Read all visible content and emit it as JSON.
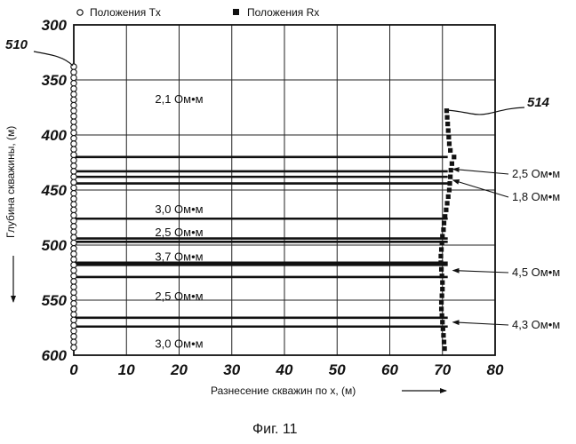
{
  "chart_data": {
    "type": "scatter",
    "title": "",
    "caption": "Фиг. 11",
    "xlabel": "Разнесение скважин по x, (м)",
    "ylabel": "Глубина скважины, (м)",
    "xlim": [
      0,
      80
    ],
    "ylim": [
      300,
      600
    ],
    "y_inverted": true,
    "x_ticks": [
      "0",
      "10",
      "20",
      "30",
      "40",
      "50",
      "60",
      "70",
      "80"
    ],
    "y_ticks": [
      "300",
      "350",
      "400",
      "450",
      "500",
      "550",
      "600"
    ],
    "x_tick_values": [
      0,
      10,
      20,
      30,
      40,
      50,
      60,
      70,
      80
    ],
    "y_tick_values": [
      300,
      350,
      400,
      450,
      500,
      550,
      600
    ],
    "grid": true,
    "legend": {
      "position": "top",
      "entries": [
        "Положения Tx",
        "Положения Rx"
      ]
    },
    "series": [
      {
        "name": "Положения Tx",
        "marker": "circle",
        "points": [
          [
            0,
            338
          ],
          [
            0,
            343
          ],
          [
            0,
            348
          ],
          [
            0,
            353
          ],
          [
            0,
            358
          ],
          [
            0,
            363
          ],
          [
            0,
            368
          ],
          [
            0,
            373
          ],
          [
            0,
            378
          ],
          [
            0,
            383
          ],
          [
            0,
            388
          ],
          [
            0,
            393
          ],
          [
            0,
            398
          ],
          [
            0,
            403
          ],
          [
            0,
            408
          ],
          [
            0,
            413
          ],
          [
            0,
            418
          ],
          [
            0,
            423
          ],
          [
            0,
            428
          ],
          [
            0,
            433
          ],
          [
            0,
            438
          ],
          [
            0,
            443
          ],
          [
            0,
            448
          ],
          [
            0,
            453
          ],
          [
            0,
            458
          ],
          [
            0,
            463
          ],
          [
            0,
            468
          ],
          [
            0,
            473
          ],
          [
            0,
            478
          ],
          [
            0,
            483
          ],
          [
            0,
            488
          ],
          [
            0,
            493
          ],
          [
            0,
            498
          ],
          [
            0,
            503
          ],
          [
            0,
            508
          ],
          [
            0,
            513
          ],
          [
            0,
            518
          ],
          [
            0,
            523
          ],
          [
            0,
            528
          ],
          [
            0,
            533
          ],
          [
            0,
            538
          ],
          [
            0,
            543
          ],
          [
            0,
            548
          ],
          [
            0,
            553
          ],
          [
            0,
            558
          ],
          [
            0,
            563
          ],
          [
            0,
            568
          ],
          [
            0,
            573
          ],
          [
            0,
            578
          ],
          [
            0,
            583
          ],
          [
            0,
            588
          ],
          [
            0,
            593
          ]
        ]
      },
      {
        "name": "Положения Rx",
        "marker": "square",
        "points": [
          [
            70.8,
            378
          ],
          [
            70.9,
            384
          ],
          [
            71.0,
            390
          ],
          [
            71.1,
            396
          ],
          [
            71.2,
            402
          ],
          [
            71.3,
            408
          ],
          [
            71.5,
            414
          ],
          [
            72.2,
            420
          ],
          [
            71.8,
            426
          ],
          [
            71.6,
            432
          ],
          [
            71.5,
            438
          ],
          [
            71.4,
            444
          ],
          [
            71.3,
            450
          ],
          [
            71.1,
            456
          ],
          [
            70.9,
            462
          ],
          [
            70.7,
            468
          ],
          [
            70.5,
            474
          ],
          [
            70.3,
            480
          ],
          [
            70.2,
            486
          ],
          [
            70.0,
            492
          ],
          [
            69.9,
            498
          ],
          [
            69.8,
            504
          ],
          [
            69.7,
            510
          ],
          [
            69.7,
            516
          ],
          [
            69.8,
            522
          ],
          [
            69.9,
            528
          ],
          [
            70.0,
            534
          ],
          [
            70.0,
            540
          ],
          [
            69.9,
            546
          ],
          [
            69.8,
            552
          ],
          [
            69.8,
            558
          ],
          [
            69.9,
            564
          ],
          [
            70.0,
            570
          ],
          [
            70.1,
            576
          ],
          [
            70.2,
            582
          ],
          [
            70.3,
            588
          ],
          [
            70.4,
            594
          ]
        ]
      }
    ],
    "layer_boundaries": [
      {
        "depth": 420,
        "x_end": 71
      },
      {
        "depth": 433,
        "x_end": 71
      },
      {
        "depth": 438,
        "x_end": 71
      },
      {
        "depth": 444,
        "x_end": 71
      },
      {
        "depth": 476,
        "x_end": 71
      },
      {
        "depth": 494,
        "x_end": 71
      },
      {
        "depth": 497,
        "x_end": 71
      },
      {
        "depth": 516,
        "x_end": 71
      },
      {
        "depth": 518,
        "x_end": 71
      },
      {
        "depth": 529,
        "x_end": 71
      },
      {
        "depth": 566,
        "x_end": 71
      },
      {
        "depth": 574,
        "x_end": 71
      }
    ],
    "resistivity_labels": [
      {
        "text": "2,1 Ом•м",
        "x": 20,
        "depth": 367
      },
      {
        "text": "3,0 Ом•м",
        "x": 20,
        "depth": 467
      },
      {
        "text": "2,5 Ом•м",
        "x": 20,
        "depth": 488
      },
      {
        "text": "3,7 Ом•м",
        "x": 20,
        "depth": 510
      },
      {
        "text": "2,5 Ом•м",
        "x": 20,
        "depth": 546
      },
      {
        "text": "3,0 Ом•м",
        "x": 20,
        "depth": 589
      }
    ],
    "callouts": [
      {
        "text": "2,5 Ом•м",
        "target_x": 72,
        "target_depth": 431
      },
      {
        "text": "1,8 Ом•м",
        "target_x": 72,
        "target_depth": 441
      },
      {
        "text": "4,5 Ом•м",
        "target_x": 72,
        "target_depth": 523
      },
      {
        "text": "4,3 Ом•м",
        "target_x": 72,
        "target_depth": 570
      }
    ],
    "reference_labels": [
      "510",
      "514"
    ]
  }
}
